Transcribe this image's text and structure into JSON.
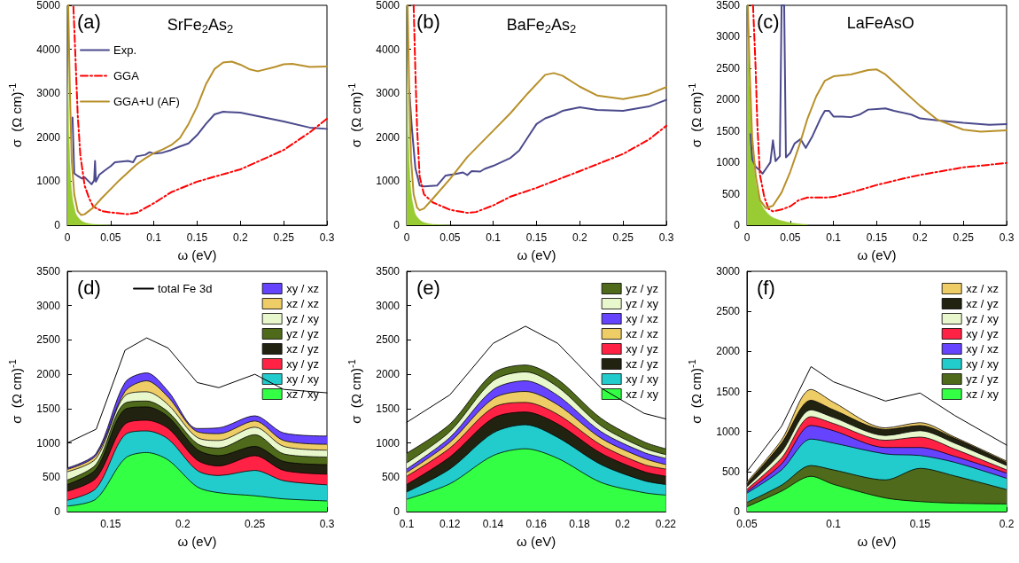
{
  "chart_data": [
    {
      "type": "line",
      "title": "SrFe$_{2}$As$_{2}$",
      "annotations": [
        "(a)"
      ],
      "xlabel": "ω (eV)",
      "ylabel": "σ  (Ω cm)$^{-1}$",
      "xlim": [
        0,
        0.3
      ],
      "ylim": [
        0,
        5000
      ],
      "xticks": [
        0,
        0.05,
        0.1,
        0.15,
        0.2,
        0.25,
        0.3
      ],
      "yticks": [
        0,
        1000,
        2000,
        3000,
        4000,
        5000
      ],
      "legend": "top left",
      "series": [
        {
          "type": "area",
          "color": "#99cc33",
          "x": [
            0,
            0.002,
            0.004,
            0.006,
            0.008,
            0.01,
            0.015,
            0.02,
            0.03,
            0.05
          ],
          "values": [
            5000,
            2000,
            1000,
            600,
            400,
            250,
            120,
            60,
            20,
            0
          ]
        },
        {
          "name": "Exp.",
          "type": "line",
          "color": "#4b4a8c",
          "x": [
            0.006,
            0.008,
            0.012,
            0.017,
            0.02,
            0.025,
            0.028,
            0.031,
            0.032,
            0.033,
            0.037,
            0.045,
            0.05,
            0.055,
            0.06,
            0.07,
            0.076,
            0.08,
            0.09,
            0.095,
            0.1,
            0.11,
            0.12,
            0.13,
            0.14,
            0.15,
            0.16,
            0.17,
            0.18,
            0.2,
            0.22,
            0.25,
            0.28,
            0.3
          ],
          "values": [
            2450,
            1180,
            1120,
            1060,
            1090,
            990,
            930,
            1020,
            1460,
            990,
            1150,
            1270,
            1340,
            1430,
            1440,
            1460,
            1430,
            1565,
            1600,
            1660,
            1630,
            1650,
            1710,
            1790,
            1860,
            2050,
            2300,
            2520,
            2580,
            2560,
            2480,
            2360,
            2220,
            2190
          ]
        },
        {
          "name": "GGA",
          "type": "line",
          "line_style": "dashed",
          "color": "#ff0000",
          "x": [
            0.007,
            0.008,
            0.01,
            0.012,
            0.015,
            0.02,
            0.025,
            0.03,
            0.04,
            0.05,
            0.07,
            0.08,
            0.1,
            0.12,
            0.15,
            0.2,
            0.25,
            0.28,
            0.3
          ],
          "values": [
            4970,
            4500,
            3500,
            2500,
            1600,
            900,
            620,
            420,
            320,
            290,
            250,
            280,
            500,
            750,
            990,
            1270,
            1710,
            2110,
            2420
          ]
        },
        {
          "name": "GGA+U (AF)",
          "type": "line",
          "color": "#b8902a",
          "x": [
            0.001,
            0.003,
            0.005,
            0.008,
            0.012,
            0.016,
            0.02,
            0.03,
            0.04,
            0.05,
            0.06,
            0.07,
            0.08,
            0.09,
            0.1,
            0.11,
            0.12,
            0.13,
            0.14,
            0.15,
            0.16,
            0.17,
            0.18,
            0.19,
            0.2,
            0.21,
            0.22,
            0.24,
            0.25,
            0.26,
            0.28,
            0.3
          ],
          "values": [
            5000,
            3000,
            1500,
            700,
            320,
            230,
            250,
            400,
            620,
            820,
            1020,
            1200,
            1380,
            1520,
            1640,
            1720,
            1820,
            1980,
            2300,
            2700,
            3200,
            3550,
            3700,
            3720,
            3650,
            3550,
            3500,
            3600,
            3660,
            3670,
            3600,
            3610
          ]
        }
      ]
    },
    {
      "type": "line",
      "title": "BaFe$_{2}$As$_{2}$",
      "annotations": [
        "(b)"
      ],
      "xlabel": "ω (eV)",
      "ylabel": "σ  (Ω cm)$^{-1}$",
      "xlim": [
        0,
        0.3
      ],
      "ylim": [
        0,
        5000
      ],
      "xticks": [
        0,
        0.05,
        0.1,
        0.15,
        0.2,
        0.25,
        0.3
      ],
      "yticks": [
        0,
        1000,
        2000,
        3000,
        4000,
        5000
      ],
      "series": [
        {
          "type": "area",
          "color": "#99cc33",
          "x": [
            0,
            0.002,
            0.004,
            0.006,
            0.008,
            0.01,
            0.015,
            0.02,
            0.03,
            0.05
          ],
          "values": [
            5000,
            2000,
            1000,
            600,
            400,
            250,
            120,
            60,
            20,
            0
          ]
        },
        {
          "type": "line",
          "color": "#4b4a8c",
          "x": [
            0.003,
            0.006,
            0.01,
            0.015,
            0.02,
            0.035,
            0.045,
            0.055,
            0.065,
            0.07,
            0.075,
            0.085,
            0.09,
            0.1,
            0.12,
            0.13,
            0.14,
            0.15,
            0.16,
            0.17,
            0.18,
            0.2,
            0.22,
            0.25,
            0.28,
            0.3
          ],
          "values": [
            3050,
            2200,
            1300,
            900,
            880,
            900,
            1130,
            1160,
            1200,
            1140,
            1230,
            1220,
            1280,
            1350,
            1530,
            1700,
            2000,
            2300,
            2430,
            2500,
            2600,
            2680,
            2620,
            2600,
            2700,
            2850
          ]
        },
        {
          "type": "line",
          "line_style": "dashed",
          "color": "#ff0000",
          "x": [
            0.008,
            0.01,
            0.012,
            0.015,
            0.02,
            0.03,
            0.05,
            0.07,
            0.08,
            0.1,
            0.12,
            0.15,
            0.2,
            0.25,
            0.28,
            0.3
          ],
          "values": [
            5000,
            3500,
            2200,
            1100,
            700,
            520,
            350,
            280,
            300,
            450,
            650,
            850,
            1230,
            1620,
            1950,
            2260
          ]
        },
        {
          "type": "line",
          "color": "#b8902a",
          "x": [
            0.001,
            0.003,
            0.005,
            0.008,
            0.012,
            0.015,
            0.02,
            0.03,
            0.05,
            0.07,
            0.1,
            0.12,
            0.14,
            0.16,
            0.17,
            0.18,
            0.2,
            0.22,
            0.25,
            0.28,
            0.3
          ],
          "values": [
            5000,
            3000,
            1500,
            700,
            400,
            340,
            380,
            600,
            1050,
            1550,
            2150,
            2550,
            3000,
            3420,
            3460,
            3400,
            3150,
            2950,
            2870,
            2980,
            3140
          ]
        }
      ]
    },
    {
      "type": "line",
      "title": "LaFeAsO",
      "annotations": [
        "(c)"
      ],
      "xlabel": "ω (eV)",
      "ylabel": "σ  (Ω cm)$^{-1}$",
      "xlim": [
        0,
        0.3
      ],
      "ylim": [
        0,
        3500
      ],
      "xticks": [
        0,
        0.05,
        0.1,
        0.15,
        0.2,
        0.25,
        0.3
      ],
      "yticks": [
        0,
        500,
        1000,
        1500,
        2000,
        2500,
        3000,
        3500
      ],
      "series": [
        {
          "type": "area",
          "color": "#99cc33",
          "x": [
            0,
            0.003,
            0.006,
            0.01,
            0.015,
            0.02,
            0.03,
            0.05,
            0.07
          ],
          "values": [
            3500,
            2200,
            1300,
            700,
            400,
            250,
            120,
            40,
            10
          ]
        },
        {
          "type": "line",
          "color": "#4b4a8c",
          "x": [
            0.004,
            0.006,
            0.01,
            0.015,
            0.018,
            0.022,
            0.027,
            0.03,
            0.033,
            0.038,
            0.04,
            0.043,
            0.045,
            0.05,
            0.055,
            0.062,
            0.065,
            0.068,
            0.075,
            0.085,
            0.09,
            0.095,
            0.1,
            0.11,
            0.12,
            0.13,
            0.14,
            0.15,
            0.16,
            0.17,
            0.19,
            0.2,
            0.22,
            0.25,
            0.28,
            0.3
          ],
          "values": [
            1450,
            1050,
            930,
            870,
            820,
            900,
            1000,
            1350,
            1020,
            1100,
            3500,
            3500,
            1080,
            1150,
            1300,
            1370,
            1300,
            1230,
            1400,
            1700,
            1820,
            1820,
            1730,
            1730,
            1720,
            1760,
            1840,
            1850,
            1860,
            1820,
            1760,
            1700,
            1670,
            1630,
            1600,
            1610
          ]
        },
        {
          "type": "line",
          "line_style": "dashed",
          "color": "#ff0000",
          "x": [
            0.007,
            0.01,
            0.012,
            0.015,
            0.02,
            0.025,
            0.03,
            0.04,
            0.05,
            0.06,
            0.07,
            0.08,
            0.09,
            0.1,
            0.12,
            0.15,
            0.18,
            0.2,
            0.25,
            0.3
          ],
          "values": [
            3500,
            2500,
            1600,
            800,
            450,
            260,
            220,
            250,
            300,
            400,
            440,
            440,
            440,
            450,
            520,
            640,
            740,
            800,
            920,
            990
          ]
        },
        {
          "type": "line",
          "color": "#b8902a",
          "x": [
            0.001,
            0.003,
            0.006,
            0.01,
            0.015,
            0.022,
            0.03,
            0.04,
            0.05,
            0.06,
            0.07,
            0.08,
            0.09,
            0.1,
            0.12,
            0.14,
            0.15,
            0.16,
            0.18,
            0.2,
            0.22,
            0.25,
            0.27,
            0.3
          ],
          "values": [
            3500,
            2500,
            1400,
            800,
            400,
            270,
            310,
            520,
            850,
            1250,
            1700,
            2050,
            2300,
            2370,
            2400,
            2470,
            2480,
            2400,
            2150,
            1900,
            1680,
            1520,
            1490,
            1510
          ]
        }
      ]
    },
    {
      "type": "area",
      "stacked": true,
      "annotations": [
        "(d)"
      ],
      "xlabel": "ω (eV)",
      "ylabel": "σ  (Ω cm)$^{-1}$",
      "xlim": [
        0.12,
        0.3
      ],
      "ylim": [
        0,
        3500
      ],
      "xticks": [
        0.15,
        0.2,
        0.25,
        0.3
      ],
      "yticks": [
        0,
        500,
        1000,
        1500,
        2000,
        2500,
        3000,
        3500
      ],
      "legend": "top right",
      "x": [
        0.12,
        0.14,
        0.16,
        0.175,
        0.19,
        0.21,
        0.225,
        0.25,
        0.27,
        0.3
      ],
      "series": [
        {
          "name": "xz / xy",
          "color": "#33ff44",
          "values": [
            80,
            185,
            775,
            860,
            750,
            360,
            275,
            230,
            185,
            155
          ]
        },
        {
          "name": "xy / xy",
          "color": "#22cccc",
          "values": [
            85,
            155,
            345,
            315,
            305,
            240,
            250,
            370,
            265,
            235
          ]
        },
        {
          "name": "xy / yz",
          "color": "#ff2244",
          "values": [
            130,
            150,
            155,
            155,
            155,
            150,
            140,
            215,
            150,
            155
          ]
        },
        {
          "name": "xz / yz",
          "color": "#222211",
          "values": [
            100,
            130,
            215,
            195,
            170,
            155,
            150,
            135,
            130,
            140
          ]
        },
        {
          "name": "yz / yz",
          "color": "#4f6a1a",
          "values": [
            65,
            70,
            90,
            85,
            70,
            85,
            110,
            170,
            110,
            110
          ]
        },
        {
          "name": "yz / xy",
          "color": "#e8f8cc",
          "values": [
            120,
            85,
            110,
            135,
            105,
            90,
            110,
            110,
            110,
            100
          ]
        },
        {
          "name": "xz / xz",
          "color": "#eecc66",
          "values": [
            35,
            45,
            60,
            160,
            110,
            85,
            100,
            90,
            85,
            85
          ]
        },
        {
          "name": "xy / xz",
          "color": "#6644ff",
          "values": [
            20,
            30,
            130,
            115,
            85,
            45,
            85,
            75,
            110,
            120
          ]
        },
        {
          "name": "total Fe 3d",
          "type": "line",
          "color": "#000000",
          "values": [
            1000,
            1200,
            2350,
            2530,
            2380,
            1880,
            1805,
            2000,
            1780,
            1730
          ]
        }
      ]
    },
    {
      "type": "area",
      "stacked": true,
      "annotations": [
        "(e)"
      ],
      "xlabel": "ω (eV)",
      "ylabel": "σ  (Ω cm)$^{-1}$",
      "xlim": [
        0.1,
        0.22
      ],
      "ylim": [
        0,
        3500
      ],
      "xticks": [
        0.1,
        0.12,
        0.14,
        0.16,
        0.18,
        0.2,
        0.22
      ],
      "yticks": [
        0,
        500,
        1000,
        1500,
        2000,
        2500,
        3000,
        3500
      ],
      "legend": "top right",
      "x": [
        0.1,
        0.12,
        0.14,
        0.155,
        0.17,
        0.19,
        0.21,
        0.22
      ],
      "series": [
        {
          "name": "xz / xy",
          "color": "#33ff44",
          "values": [
            180,
            405,
            815,
            915,
            775,
            425,
            275,
            240
          ]
        },
        {
          "name": "xy / xy",
          "color": "#22cccc",
          "values": [
            105,
            215,
            330,
            350,
            305,
            260,
            175,
            155
          ]
        },
        {
          "name": "xz / yz",
          "color": "#222211",
          "values": [
            110,
            175,
            215,
            185,
            195,
            165,
            130,
            120
          ]
        },
        {
          "name": "xy / yz",
          "color": "#ff2244",
          "values": [
            120,
            130,
            155,
            140,
            140,
            120,
            105,
            105
          ]
        },
        {
          "name": "xz / xz",
          "color": "#eecc66",
          "values": [
            55,
            85,
            130,
            160,
            140,
            100,
            90,
            65
          ]
        },
        {
          "name": "xy / xz",
          "color": "#6644ff",
          "values": [
            50,
            70,
            130,
            155,
            135,
            95,
            85,
            90
          ]
        },
        {
          "name": "yz / xy",
          "color": "#e8f8cc",
          "values": [
            90,
            85,
            130,
            130,
            125,
            85,
            65,
            55
          ]
        },
        {
          "name": "yz / yz",
          "color": "#4f6a1a",
          "values": [
            140,
            110,
            110,
            100,
            110,
            110,
            90,
            85
          ]
        },
        {
          "type": "line",
          "color": "#000000",
          "values": [
            1300,
            1700,
            2450,
            2700,
            2450,
            1800,
            1430,
            1350
          ]
        }
      ]
    },
    {
      "type": "area",
      "stacked": true,
      "annotations": [
        "(f)"
      ],
      "xlabel": "ω (eV)",
      "ylabel": "σ  (Ω cm)$^{-1}$",
      "xlim": [
        0.05,
        0.2
      ],
      "ylim": [
        0,
        3000
      ],
      "xticks": [
        0.05,
        0.1,
        0.15,
        0.2
      ],
      "yticks": [
        0,
        500,
        1000,
        1500,
        2000,
        2500,
        3000
      ],
      "legend": "top right",
      "x": [
        0.05,
        0.07,
        0.087,
        0.1,
        0.13,
        0.15,
        0.17,
        0.2
      ],
      "series": [
        {
          "name": "xz / xy",
          "color": "#33ff44",
          "values": [
            60,
            255,
            440,
            340,
            170,
            125,
            105,
            95
          ]
        },
        {
          "name": "yz / yz",
          "color": "#4f6a1a",
          "values": [
            55,
            75,
            135,
            180,
            225,
            415,
            340,
            180
          ]
        },
        {
          "name": "xy / xy",
          "color": "#22cccc",
          "values": [
            115,
            190,
            330,
            335,
            325,
            160,
            170,
            140
          ]
        },
        {
          "name": "xy / xz",
          "color": "#6644ff",
          "values": [
            20,
            75,
            170,
            155,
            80,
            100,
            75,
            65
          ]
        },
        {
          "name": "xy / yz",
          "color": "#ff2244",
          "values": [
            30,
            75,
            110,
            90,
            90,
            130,
            90,
            40
          ]
        },
        {
          "name": "yz / xy",
          "color": "#e8f8cc",
          "values": [
            30,
            75,
            85,
            75,
            60,
            80,
            75,
            55
          ]
        },
        {
          "name": "xz / yz",
          "color": "#222211",
          "values": [
            40,
            110,
            120,
            95,
            75,
            65,
            60,
            40
          ]
        },
        {
          "name": "xz / xz",
          "color": "#eecc66",
          "values": [
            20,
            40,
            135,
            95,
            20,
            35,
            15,
            15
          ]
        },
        {
          "type": "line",
          "color": "#000000",
          "values": [
            500,
            1065,
            1810,
            1620,
            1380,
            1480,
            1200,
            830
          ]
        }
      ]
    }
  ]
}
